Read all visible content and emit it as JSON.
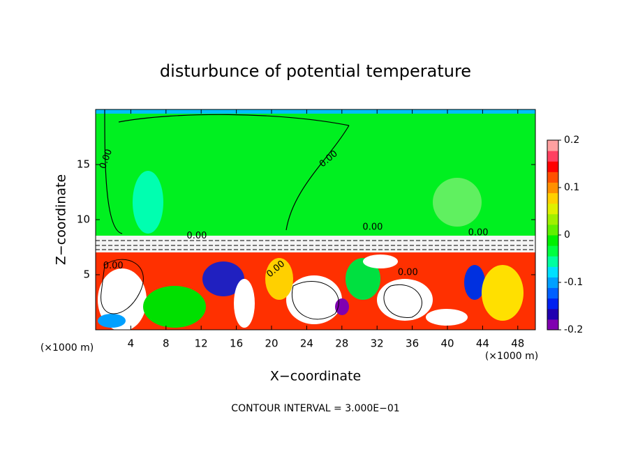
{
  "chart_data": {
    "type": "contour",
    "title": "disturbunce of potential temperature",
    "xlabel": "X−coordinate",
    "ylabel": "Z−coordinate",
    "x_unit_left": "(×1000 m)",
    "x_unit_right": "(×1000 m)",
    "footer": "CONTOUR INTERVAL = 3.000E−01",
    "xlim": [
      0,
      50
    ],
    "xticks": [
      4,
      8,
      12,
      16,
      20,
      24,
      28,
      32,
      36,
      40,
      44,
      48
    ],
    "ylim": [
      0,
      20
    ],
    "yticks": [
      5,
      10,
      15
    ],
    "colorbar": {
      "lim": [
        -0.2,
        0.2
      ],
      "ticks": [
        -0.2,
        -0.1,
        0,
        0.1,
        0.2
      ],
      "colors": [
        "#8000b0",
        "#2000b0",
        "#0020f0",
        "#0060ff",
        "#00a0ff",
        "#00e0ff",
        "#00ffa0",
        "#00ff40",
        "#00f000",
        "#60f000",
        "#a0f000",
        "#e0f000",
        "#ffd000",
        "#ff9000",
        "#ff5000",
        "#ff0000",
        "#ff4060",
        "#ffa0a0"
      ]
    },
    "contour_labels": [
      {
        "text": "0.00",
        "x": 1.2,
        "y": 15.5,
        "angle": -70
      },
      {
        "text": "0.00",
        "x": 26.5,
        "y": 15.5,
        "angle": -40
      },
      {
        "text": "0.00",
        "x": 11.5,
        "y": 8.5,
        "angle": 0
      },
      {
        "text": "0.00",
        "x": 31.5,
        "y": 9.3,
        "angle": 0
      },
      {
        "text": "0.00",
        "x": 43.5,
        "y": 8.8,
        "angle": 0
      },
      {
        "text": "0.00",
        "x": 2.0,
        "y": 5.8,
        "angle": 0
      },
      {
        "text": "0.00",
        "x": 20.5,
        "y": 5.5,
        "angle": -40
      },
      {
        "text": "0.00",
        "x": 35.5,
        "y": 5.2,
        "angle": 0
      }
    ]
  }
}
